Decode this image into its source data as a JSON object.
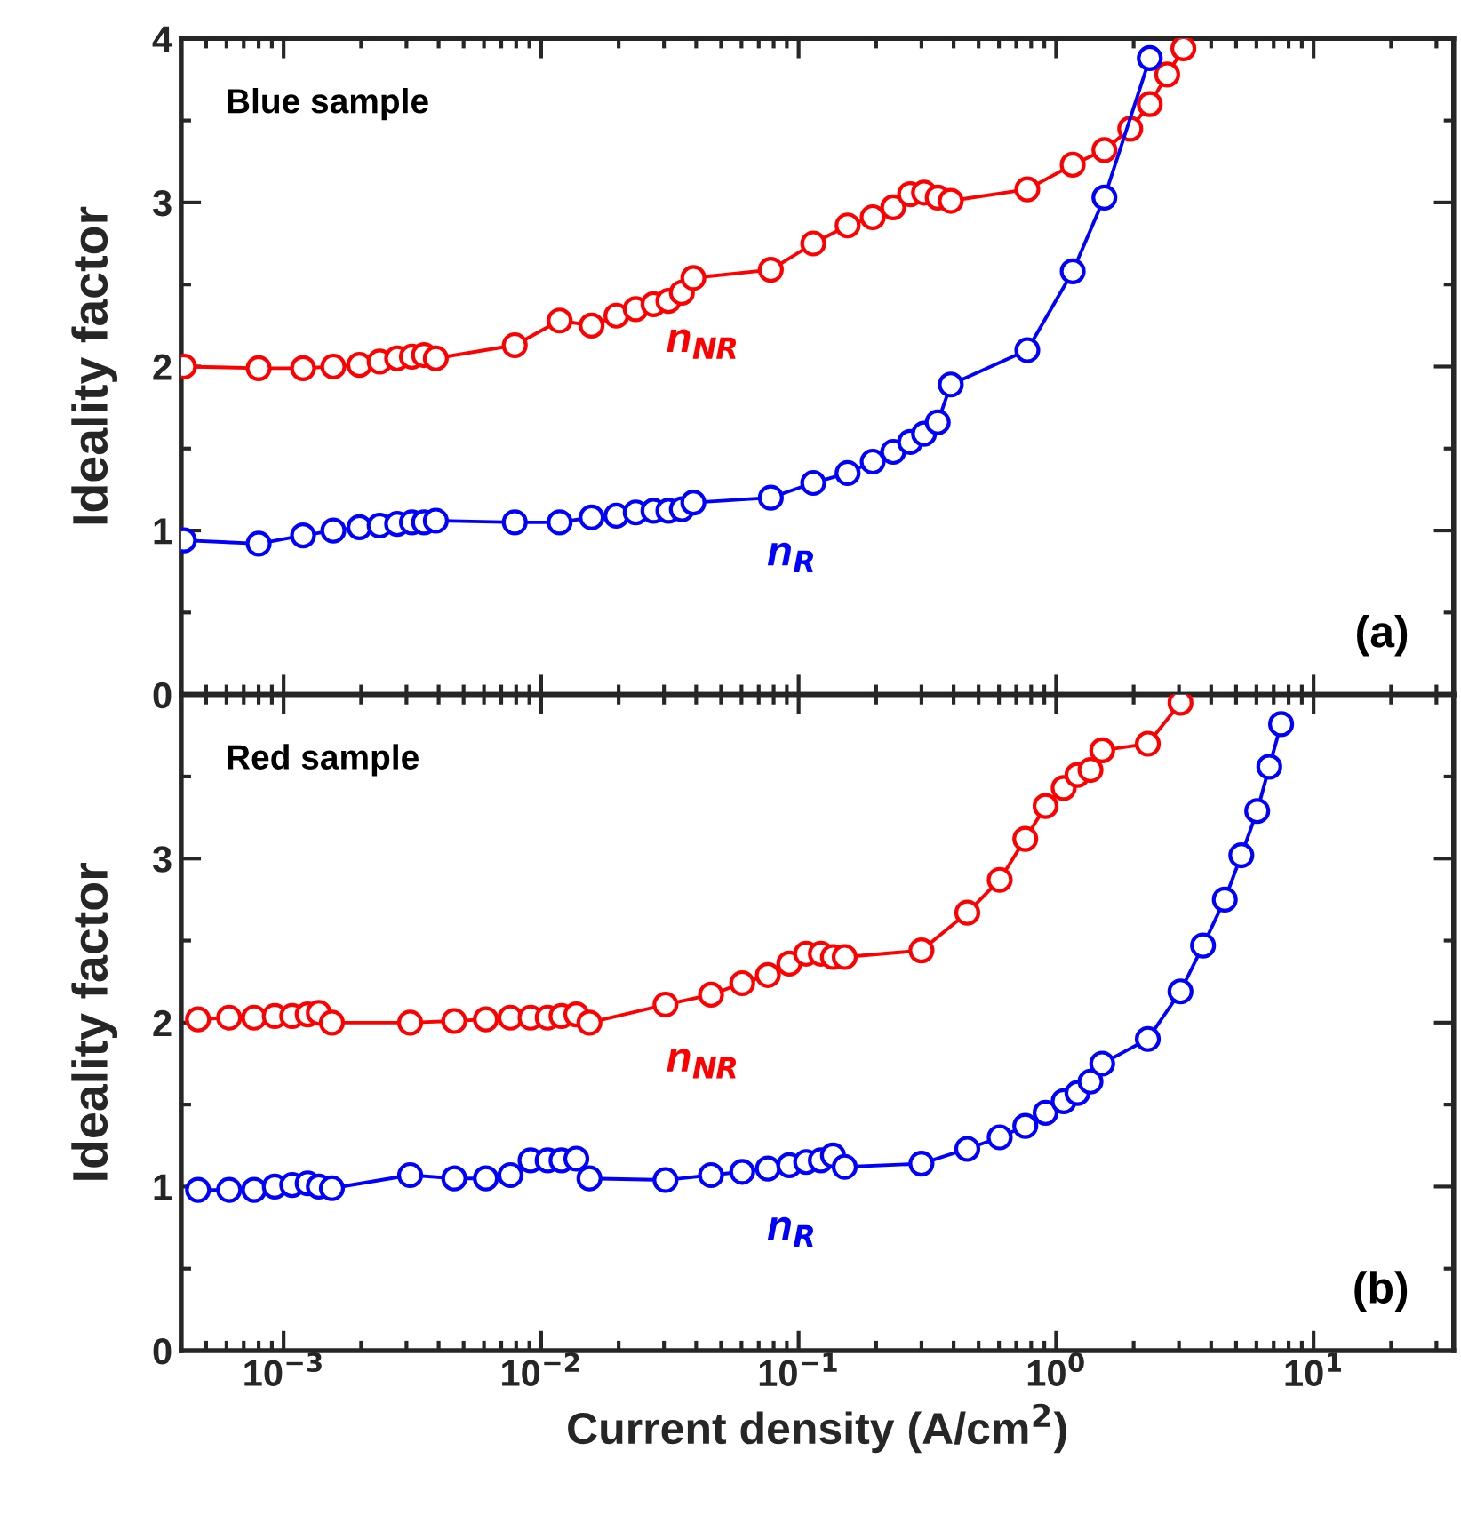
{
  "chart_data": [
    {
      "type": "line",
      "ylabel": "Ideality factor",
      "xlim": [
        0.0004,
        35
      ],
      "ylim": [
        0,
        4
      ],
      "log": "x",
      "marker": "circle",
      "line_style": "solid",
      "grid": false,
      "tick_labels": "y",
      "xticks": [
        {
          "value": 0.001,
          "label": null
        },
        {
          "value": 0.01,
          "label": null
        },
        {
          "value": 0.1,
          "label": null
        },
        {
          "value": 1,
          "label": null
        },
        {
          "value": 10,
          "label": null
        }
      ],
      "yticks": [
        0,
        1,
        2,
        3,
        4
      ],
      "annotations": [
        "Blue sample",
        "(a)"
      ],
      "series": [
        {
          "name": "n$_{NR}$",
          "color": "#ff0000",
          "x": [
            0.00041,
            0.0008,
            0.00119,
            0.00156,
            0.00197,
            0.00236,
            0.00276,
            0.00315,
            0.00351,
            0.0039,
            0.0079,
            0.0118,
            0.0157,
            0.0196,
            0.0233,
            0.0273,
            0.0312,
            0.0352,
            0.039,
            0.078,
            0.114,
            0.155,
            0.194,
            0.233,
            0.271,
            0.307,
            0.347,
            0.39,
            0.773,
            1.16,
            1.54,
            1.94,
            2.31,
            2.7,
            3.12
          ],
          "values": [
            2.0,
            1.99,
            1.99,
            2.0,
            2.01,
            2.03,
            2.05,
            2.06,
            2.07,
            2.05,
            2.13,
            2.28,
            2.25,
            2.31,
            2.35,
            2.38,
            2.4,
            2.45,
            2.54,
            2.59,
            2.75,
            2.86,
            2.91,
            2.97,
            3.05,
            3.06,
            3.03,
            3.01,
            3.08,
            3.23,
            3.32,
            3.45,
            3.6,
            3.78,
            3.94
          ]
        },
        {
          "name": "n$_{R}$",
          "color": "#0000ff",
          "x": [
            0.00041,
            0.0008,
            0.00119,
            0.00156,
            0.00197,
            0.00236,
            0.00276,
            0.00315,
            0.00351,
            0.0039,
            0.0079,
            0.0118,
            0.0157,
            0.0196,
            0.0233,
            0.0273,
            0.0312,
            0.0352,
            0.039,
            0.078,
            0.114,
            0.155,
            0.194,
            0.233,
            0.271,
            0.307,
            0.347,
            0.39,
            0.773,
            1.16,
            1.54,
            2.31
          ],
          "values": [
            0.94,
            0.92,
            0.97,
            1.0,
            1.02,
            1.03,
            1.04,
            1.05,
            1.05,
            1.06,
            1.05,
            1.05,
            1.08,
            1.09,
            1.11,
            1.12,
            1.12,
            1.13,
            1.17,
            1.2,
            1.29,
            1.35,
            1.42,
            1.48,
            1.54,
            1.59,
            1.66,
            1.89,
            2.1,
            2.58,
            3.03,
            3.88
          ]
        }
      ]
    },
    {
      "type": "line",
      "ylabel": "Ideality factor",
      "xlabel": "Current density (A/cm$^{2}$)",
      "xlim": [
        0.0004,
        35
      ],
      "ylim": [
        0,
        4
      ],
      "log": "x",
      "marker": "circle",
      "line_style": "solid",
      "grid": false,
      "xticks": [
        {
          "value": 0.001,
          "label": "10$^{−3}$"
        },
        {
          "value": 0.01,
          "label": "10$^{−2}$"
        },
        {
          "value": 0.1,
          "label": "10$^{−1}$"
        },
        {
          "value": 1,
          "label": "10$^{0}$"
        },
        {
          "value": 10,
          "label": "10$^{1}$"
        }
      ],
      "yticks": [
        0,
        1,
        2,
        3,
        {
          "value": 4,
          "label": null
        }
      ],
      "annotations": [
        "Red sample",
        "(b)"
      ],
      "series": [
        {
          "name": "n$_{NR}$",
          "color": "#ff0000",
          "x": [
            0.000465,
            0.000614,
            0.000768,
            0.000924,
            0.00108,
            0.00124,
            0.00137,
            0.00154,
            0.0031,
            0.0046,
            0.0061,
            0.0076,
            0.0091,
            0.0106,
            0.012,
            0.0137,
            0.0154,
            0.0304,
            0.0457,
            0.0604,
            0.076,
            0.092,
            0.107,
            0.122,
            0.136,
            0.151,
            0.3,
            0.452,
            0.604,
            0.759,
            0.91,
            1.07,
            1.21,
            1.36,
            1.51,
            2.27,
            3.04
          ],
          "values": [
            2.02,
            2.03,
            2.03,
            2.04,
            2.04,
            2.05,
            2.06,
            2.0,
            2.0,
            2.01,
            2.02,
            2.03,
            2.03,
            2.03,
            2.04,
            2.05,
            2.0,
            2.11,
            2.17,
            2.24,
            2.29,
            2.36,
            2.42,
            2.42,
            2.4,
            2.4,
            2.44,
            2.67,
            2.87,
            3.12,
            3.32,
            3.43,
            3.51,
            3.54,
            3.66,
            3.7,
            3.95
          ]
        },
        {
          "name": "n$_{R}$",
          "color": "#0000ff",
          "x": [
            0.000465,
            0.000614,
            0.000768,
            0.000924,
            0.00108,
            0.00124,
            0.00137,
            0.00154,
            0.0031,
            0.0046,
            0.0061,
            0.0076,
            0.0091,
            0.0106,
            0.012,
            0.0137,
            0.0154,
            0.0304,
            0.0457,
            0.0604,
            0.076,
            0.092,
            0.107,
            0.122,
            0.136,
            0.151,
            0.3,
            0.452,
            0.604,
            0.759,
            0.91,
            1.07,
            1.21,
            1.36,
            1.51,
            2.27,
            3.04,
            3.72,
            4.52,
            5.24,
            6.04,
            6.73,
            7.48
          ],
          "values": [
            0.98,
            0.98,
            0.98,
            1.0,
            1.01,
            1.02,
            1.0,
            0.99,
            1.07,
            1.05,
            1.05,
            1.07,
            1.16,
            1.16,
            1.16,
            1.17,
            1.05,
            1.04,
            1.07,
            1.09,
            1.11,
            1.13,
            1.15,
            1.16,
            1.19,
            1.12,
            1.14,
            1.23,
            1.3,
            1.37,
            1.45,
            1.52,
            1.57,
            1.64,
            1.75,
            1.9,
            2.19,
            2.47,
            2.75,
            3.02,
            3.29,
            3.56,
            3.82
          ]
        }
      ]
    }
  ]
}
